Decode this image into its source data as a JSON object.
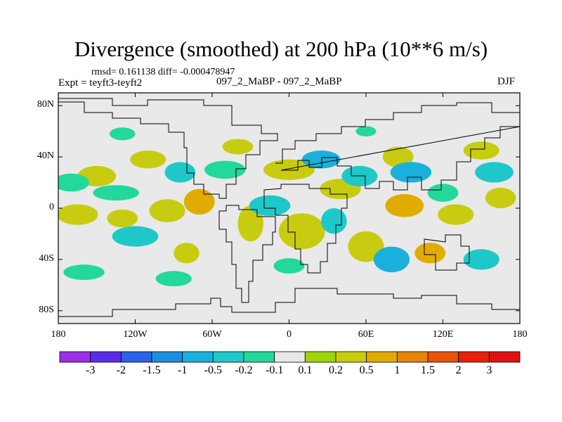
{
  "chart_data": {
    "type": "heatmap",
    "title": "Divergence (smoothed) at 200 hPa (10**6 m/s)",
    "stats_text": "rmsd= 0.161138 diff= -0.000478947",
    "experiment_text": "Expt = teyft3-teyft2",
    "center_label": "097_2_MaBP - 097_2_MaBP",
    "season": "DJF",
    "x_range": [
      -180,
      180
    ],
    "y_range": [
      -90,
      90
    ],
    "x_ticks": [
      {
        "value": -180,
        "label": "180"
      },
      {
        "value": -120,
        "label": "120W"
      },
      {
        "value": -60,
        "label": "60W"
      },
      {
        "value": 0,
        "label": "0"
      },
      {
        "value": 60,
        "label": "60E"
      },
      {
        "value": 120,
        "label": "120E"
      },
      {
        "value": 180,
        "label": "180"
      }
    ],
    "y_ticks": [
      {
        "value": 80,
        "label": "80N"
      },
      {
        "value": 40,
        "label": "40N"
      },
      {
        "value": 0,
        "label": "0"
      },
      {
        "value": -40,
        "label": "40S"
      },
      {
        "value": -80,
        "label": "80S"
      }
    ],
    "colorbar": {
      "labels": [
        "-3",
        "-2",
        "-1.5",
        "-1",
        "-0.5",
        "-0.2",
        "-0.1",
        "0.1",
        "0.2",
        "0.5",
        "1",
        "1.5",
        "2",
        "3"
      ],
      "colors": [
        "#9b30e8",
        "#5a2ee8",
        "#2a63e8",
        "#1c8ee0",
        "#1ab0dc",
        "#1fc8c8",
        "#22d89a",
        "#e8e8e8",
        "#9fd40a",
        "#c8cc10",
        "#e0ac00",
        "#e8840a",
        "#e8540a",
        "#e8200a",
        "#e01010"
      ]
    },
    "features": [
      {
        "lon": -165,
        "lat": -5,
        "rx": 16,
        "ry": 8,
        "color": "#c8cc10"
      },
      {
        "lon": -130,
        "lat": -8,
        "rx": 12,
        "ry": 7,
        "color": "#c8cc10"
      },
      {
        "lon": -95,
        "lat": -2,
        "rx": 14,
        "ry": 9,
        "color": "#c8cc10"
      },
      {
        "lon": -70,
        "lat": 5,
        "rx": 12,
        "ry": 10,
        "color": "#e0ac00"
      },
      {
        "lon": -30,
        "lat": -12,
        "rx": 10,
        "ry": 14,
        "color": "#c8cc10"
      },
      {
        "lon": 0,
        "lat": 30,
        "rx": 20,
        "ry": 8,
        "color": "#c8cc10"
      },
      {
        "lon": 10,
        "lat": -18,
        "rx": 18,
        "ry": 14,
        "color": "#c8cc10"
      },
      {
        "lon": 40,
        "lat": 15,
        "rx": 16,
        "ry": 8,
        "color": "#c8cc10"
      },
      {
        "lon": 60,
        "lat": -30,
        "rx": 14,
        "ry": 12,
        "color": "#c8cc10"
      },
      {
        "lon": 90,
        "lat": 2,
        "rx": 15,
        "ry": 9,
        "color": "#e0ac00"
      },
      {
        "lon": 130,
        "lat": -5,
        "rx": 14,
        "ry": 8,
        "color": "#c8cc10"
      },
      {
        "lon": 165,
        "lat": 8,
        "rx": 12,
        "ry": 8,
        "color": "#c8cc10"
      },
      {
        "lon": -150,
        "lat": 25,
        "rx": 15,
        "ry": 8,
        "color": "#c8cc10"
      },
      {
        "lon": -110,
        "lat": 38,
        "rx": 14,
        "ry": 7,
        "color": "#c8cc10"
      },
      {
        "lon": -40,
        "lat": 48,
        "rx": 12,
        "ry": 6,
        "color": "#c8cc10"
      },
      {
        "lon": 85,
        "lat": 40,
        "rx": 12,
        "ry": 8,
        "color": "#c8cc10"
      },
      {
        "lon": 150,
        "lat": 45,
        "rx": 14,
        "ry": 7,
        "color": "#c8cc10"
      },
      {
        "lon": -80,
        "lat": -35,
        "rx": 10,
        "ry": 8,
        "color": "#c8cc10"
      },
      {
        "lon": 110,
        "lat": -35,
        "rx": 12,
        "ry": 8,
        "color": "#e0ac00"
      },
      {
        "lon": -170,
        "lat": 20,
        "rx": 14,
        "ry": 7,
        "color": "#22d89a"
      },
      {
        "lon": -135,
        "lat": 12,
        "rx": 18,
        "ry": 6,
        "color": "#22d89a"
      },
      {
        "lon": -120,
        "lat": -22,
        "rx": 18,
        "ry": 8,
        "color": "#1fc8c8"
      },
      {
        "lon": -85,
        "lat": 28,
        "rx": 12,
        "ry": 8,
        "color": "#1fc8c8"
      },
      {
        "lon": -50,
        "lat": 30,
        "rx": 16,
        "ry": 7,
        "color": "#22d89a"
      },
      {
        "lon": -15,
        "lat": 2,
        "rx": 16,
        "ry": 8,
        "color": "#1fc8c8"
      },
      {
        "lon": 25,
        "lat": 38,
        "rx": 15,
        "ry": 7,
        "color": "#1ab0dc"
      },
      {
        "lon": 55,
        "lat": 25,
        "rx": 14,
        "ry": 8,
        "color": "#1fc8c8"
      },
      {
        "lon": 95,
        "lat": 28,
        "rx": 16,
        "ry": 8,
        "color": "#1ab0dc"
      },
      {
        "lon": 120,
        "lat": 12,
        "rx": 12,
        "ry": 7,
        "color": "#22d89a"
      },
      {
        "lon": 160,
        "lat": 28,
        "rx": 15,
        "ry": 8,
        "color": "#1fc8c8"
      },
      {
        "lon": 35,
        "lat": -10,
        "rx": 10,
        "ry": 10,
        "color": "#1fc8c8"
      },
      {
        "lon": 80,
        "lat": -40,
        "rx": 14,
        "ry": 10,
        "color": "#1ab0dc"
      },
      {
        "lon": -160,
        "lat": -50,
        "rx": 16,
        "ry": 6,
        "color": "#22d89a"
      },
      {
        "lon": -90,
        "lat": -55,
        "rx": 14,
        "ry": 6,
        "color": "#22d89a"
      },
      {
        "lon": 0,
        "lat": -45,
        "rx": 12,
        "ry": 6,
        "color": "#22d89a"
      },
      {
        "lon": 150,
        "lat": -40,
        "rx": 14,
        "ry": 8,
        "color": "#1fc8c8"
      },
      {
        "lon": -130,
        "lat": 58,
        "rx": 10,
        "ry": 5,
        "color": "#22d89a"
      },
      {
        "lon": 60,
        "lat": 60,
        "rx": 8,
        "ry": 4,
        "color": "#22d89a"
      }
    ]
  }
}
